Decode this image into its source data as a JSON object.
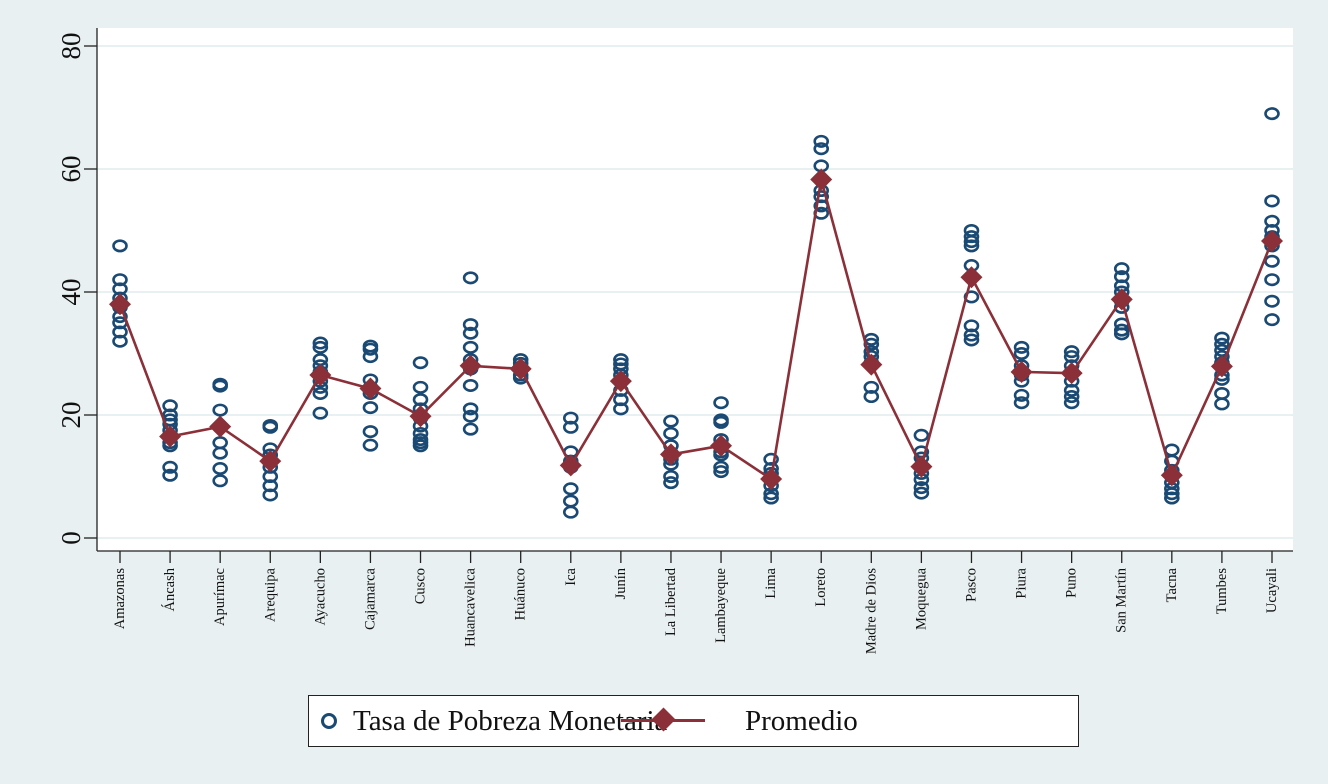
{
  "chart_data": {
    "type": "scatter",
    "title": "",
    "xlabel": "",
    "ylabel": "",
    "ylim": [
      0,
      80
    ],
    "yticks": [
      "0",
      "20",
      "40",
      "60",
      "80"
    ],
    "ytick_values": [
      0,
      20,
      40,
      60,
      80
    ],
    "grid": true,
    "legend_position": "bottom",
    "categories": [
      "Amazonas",
      "Áncash",
      "Apurímac",
      "Arequipa",
      "Ayacucho",
      "Cajamarca",
      "Cusco",
      "Huancavelica",
      "Huánuco",
      "Ica",
      "Junín",
      "La Libertad",
      "Lambayeque",
      "Lima",
      "Loreto",
      "Madre de Dios",
      "Moquegua",
      "Pasco",
      "Piura",
      "Puno",
      "San Martín",
      "Tacna",
      "Tumbes",
      "Ucayali"
    ],
    "series": [
      {
        "name": "Tasa de Pobreza Monetaria",
        "kind": "scatter",
        "color": "#1a4a73",
        "values": [
          [
            47.5,
            42.0,
            40.5,
            39.0,
            37.5,
            36.0,
            35.0,
            33.5,
            32.0
          ],
          [
            21.5,
            20.0,
            19.2,
            18.5,
            17.5,
            16.5,
            15.5,
            15.0,
            11.5,
            10.2
          ],
          [
            25.0,
            24.7,
            20.8,
            18.0,
            15.5,
            13.8,
            11.3,
            9.3
          ],
          [
            18.3,
            18.0,
            14.5,
            13.5,
            12.3,
            11.5,
            10.0,
            8.5,
            7.0
          ],
          [
            31.7,
            31.0,
            29.0,
            28.0,
            27.0,
            25.5,
            24.5,
            23.5,
            20.3
          ],
          [
            31.2,
            30.7,
            29.5,
            25.7,
            24.5,
            23.5,
            21.2,
            17.3,
            15.1
          ],
          [
            28.5,
            24.5,
            22.5,
            21.0,
            19.5,
            18.2,
            17.0,
            16.0,
            15.5,
            15.0
          ],
          [
            42.3,
            34.7,
            33.3,
            31.0,
            29.0,
            27.5,
            24.8,
            21.0,
            19.8,
            17.7
          ],
          [
            29.0,
            28.4,
            27.8,
            26.5,
            26.0
          ],
          [
            19.5,
            18.0,
            14.0,
            12.5,
            11.5,
            8.0,
            6.0,
            4.2
          ],
          [
            29.0,
            28.3,
            27.5,
            26.5,
            25.5,
            24.0,
            22.5,
            21.0
          ],
          [
            19.0,
            17.0,
            15.0,
            13.8,
            12.8,
            12.0,
            10.0,
            9.0
          ],
          [
            22.0,
            19.2,
            18.8,
            16.0,
            15.0,
            14.0,
            13.5,
            11.5,
            10.8
          ],
          [
            12.8,
            11.3,
            10.5,
            9.5,
            8.5,
            7.2,
            6.5
          ],
          [
            64.5,
            63.3,
            60.5,
            58.2,
            56.5,
            55.5,
            54.0,
            52.8
          ],
          [
            32.3,
            31.5,
            30.3,
            29.5,
            28.5,
            24.5,
            23.0
          ],
          [
            16.7,
            14.0,
            13.0,
            11.5,
            10.5,
            9.5,
            8.2,
            7.3
          ],
          [
            50.0,
            49.0,
            48.2,
            47.5,
            44.3,
            39.2,
            34.5,
            33.0,
            32.2
          ],
          [
            31.0,
            30.0,
            28.0,
            26.5,
            25.5,
            23.2,
            22.0
          ],
          [
            30.3,
            29.5,
            28.0,
            27.0,
            25.5,
            24.0,
            23.0,
            22.0
          ],
          [
            43.8,
            42.5,
            41.0,
            40.0,
            38.5,
            37.5,
            34.8,
            33.8,
            33.2
          ],
          [
            14.3,
            12.5,
            11.0,
            10.0,
            9.0,
            8.0,
            7.2,
            6.5
          ],
          [
            32.5,
            31.5,
            30.5,
            29.5,
            28.5,
            26.5,
            25.8,
            23.5,
            21.8
          ],
          [
            69.0,
            54.8,
            51.5,
            50.0,
            49.0,
            47.5,
            45.0,
            42.0,
            38.5,
            35.5
          ]
        ]
      },
      {
        "name": "Promedio",
        "kind": "line-diamond",
        "color": "#8b3038",
        "values": [
          38.0,
          16.5,
          18.1,
          12.5,
          26.5,
          24.3,
          19.8,
          28.0,
          27.5,
          11.8,
          25.5,
          13.6,
          15.0,
          9.6,
          58.3,
          28.2,
          11.6,
          42.4,
          27.0,
          26.8,
          38.8,
          10.2,
          27.9,
          48.3
        ]
      }
    ]
  },
  "legend": {
    "item1": "Tasa de Pobreza Monetaria",
    "item2": "Promedio"
  },
  "colors": {
    "background": "#e8f0f1",
    "plot_bg": "#ffffff",
    "gridline": "#e8f0f1",
    "scatter": "#1a4a73",
    "mean": "#8b3038"
  }
}
